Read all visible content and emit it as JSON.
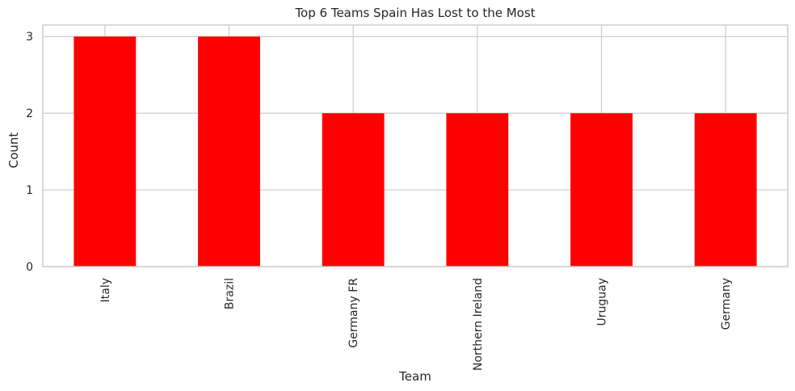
{
  "chart_data": {
    "type": "bar",
    "title": "Top 6 Teams Spain Has Lost to the Most",
    "xlabel": "Team",
    "ylabel": "Count",
    "categories": [
      "Italy",
      "Brazil",
      "Germany FR",
      "Northern Ireland",
      "Uruguay",
      "Germany"
    ],
    "values": [
      3,
      3,
      2,
      2,
      2,
      2
    ],
    "ylim": [
      0,
      3.15
    ],
    "yticks": [
      "0",
      "1",
      "2",
      "3"
    ],
    "grid": true,
    "bar_color": "#ff0000",
    "grid_color": "#cccccc",
    "frame_color": "#cccccc"
  }
}
